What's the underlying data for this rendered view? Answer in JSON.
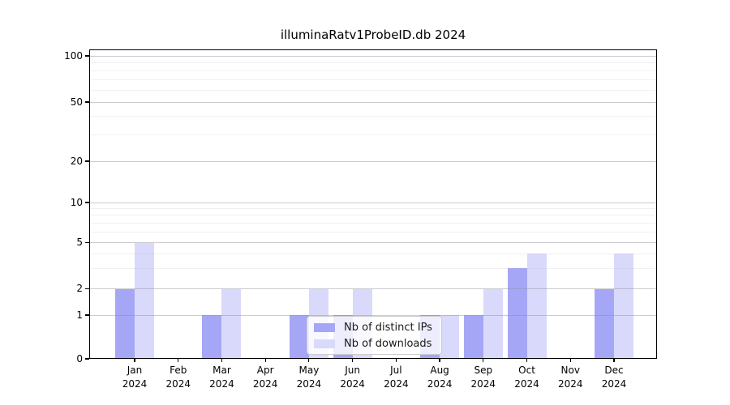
{
  "window": {
    "background": "#ffffff"
  },
  "chart_data": {
    "type": "bar",
    "title": "illuminaRatv1ProbeID.db 2024",
    "categories": [
      "Jan",
      "Feb",
      "Mar",
      "Apr",
      "May",
      "Jun",
      "Jul",
      "Aug",
      "Sep",
      "Oct",
      "Nov",
      "Dec"
    ],
    "category_year": "2024",
    "series": [
      {
        "name": "Nb of distinct IPs",
        "color": "#a6a6f7",
        "values": [
          2,
          0,
          1,
          0,
          1,
          1,
          0,
          1,
          1,
          3,
          0,
          2
        ]
      },
      {
        "name": "Nb of downloads",
        "color": "#d9d9fb",
        "values": [
          5,
          0,
          2,
          0,
          2,
          2,
          0,
          1,
          2,
          4,
          0,
          4
        ]
      }
    ],
    "xlabel": "",
    "ylabel": "",
    "yscale": "symlog",
    "ylim": [
      0,
      100
    ],
    "y_major_ticks": [
      0,
      1,
      2,
      5,
      10,
      20,
      50,
      100
    ],
    "y_minor_ticks": [
      3,
      4,
      6,
      7,
      8,
      9,
      30,
      40,
      60,
      70,
      80,
      90
    ],
    "grid": true,
    "legend_position": "lower center"
  }
}
